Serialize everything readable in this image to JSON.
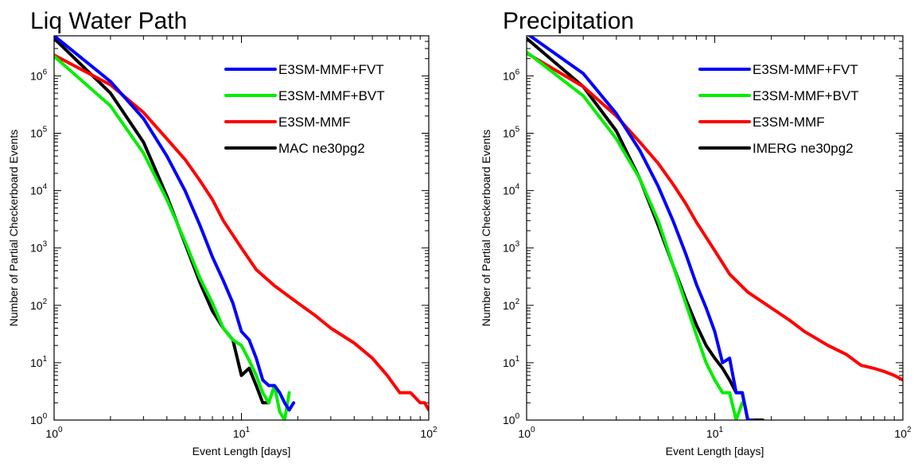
{
  "chart_data": [
    {
      "type": "line",
      "title": "Liq Water Path",
      "xlabel": "Event Length [days]",
      "ylabel": "Number of Partial Checkerboard Events",
      "xscale": "log",
      "yscale": "log",
      "xlim": [
        1,
        100
      ],
      "ylim": [
        1,
        5000000
      ],
      "x_ticks": [
        {
          "value": 1,
          "base": "10",
          "exp": "0"
        },
        {
          "value": 10,
          "base": "10",
          "exp": "1"
        },
        {
          "value": 100,
          "base": "10",
          "exp": "2"
        }
      ],
      "y_ticks": [
        {
          "value": 1,
          "base": "10",
          "exp": "0"
        },
        {
          "value": 10,
          "base": "10",
          "exp": "1"
        },
        {
          "value": 100,
          "base": "10",
          "exp": "2"
        },
        {
          "value": 1000,
          "base": "10",
          "exp": "3"
        },
        {
          "value": 10000,
          "base": "10",
          "exp": "4"
        },
        {
          "value": 100000,
          "base": "10",
          "exp": "5"
        },
        {
          "value": 1000000,
          "base": "10",
          "exp": "6"
        }
      ],
      "grid": false,
      "legend_position": "top-right",
      "series": [
        {
          "name": "E3SM-MMF+FVT",
          "color": "#0000ff",
          "x": [
            1,
            2,
            3,
            4,
            5,
            6,
            7,
            8,
            9,
            10,
            11,
            12,
            13,
            14,
            15,
            16,
            17,
            18,
            19
          ],
          "y": [
            5000000,
            800000,
            180000,
            40000,
            10000,
            2500,
            700,
            270,
            110,
            35,
            25,
            12,
            5,
            4,
            4,
            3,
            2,
            1.5,
            2
          ]
        },
        {
          "name": "E3SM-MMF+BVT",
          "color": "#00ee00",
          "x": [
            1,
            2,
            3,
            4,
            5,
            6,
            7,
            8,
            9,
            10,
            11,
            12,
            13,
            14,
            15,
            16,
            17,
            18
          ],
          "y": [
            2200000,
            300000,
            45000,
            7000,
            1300,
            300,
            110,
            40,
            25,
            20,
            11,
            6,
            3,
            2,
            4,
            1.4,
            1,
            3
          ]
        },
        {
          "name": "E3SM-MMF",
          "color": "#ff0000",
          "x": [
            1,
            2,
            3,
            4,
            5,
            6,
            7,
            8,
            10,
            12,
            15,
            20,
            25,
            30,
            40,
            50,
            60,
            70,
            80,
            90,
            95,
            100
          ],
          "y": [
            2300000,
            700000,
            230000,
            80000,
            35000,
            15000,
            7000,
            3000,
            1000,
            420,
            220,
            110,
            65,
            40,
            22,
            12,
            6,
            3,
            3,
            2,
            2,
            1.5
          ]
        },
        {
          "name": "MAC ne30pg2",
          "color": "#000000",
          "x": [
            1,
            2,
            3,
            4,
            5,
            6,
            7,
            8,
            9,
            10,
            11,
            12,
            13,
            14
          ],
          "y": [
            4500000,
            500000,
            70000,
            8000,
            1200,
            250,
            80,
            40,
            25,
            6,
            8,
            4,
            2,
            2
          ]
        }
      ]
    },
    {
      "type": "line",
      "title": "Precipitation",
      "xlabel": "Event Length [days]",
      "ylabel": "Number of Partial Checkerboard Events",
      "xscale": "log",
      "yscale": "log",
      "xlim": [
        1,
        100
      ],
      "ylim": [
        1,
        5000000
      ],
      "x_ticks": [
        {
          "value": 1,
          "base": "10",
          "exp": "0"
        },
        {
          "value": 10,
          "base": "10",
          "exp": "1"
        },
        {
          "value": 100,
          "base": "10",
          "exp": "2"
        }
      ],
      "y_ticks": [
        {
          "value": 1,
          "base": "10",
          "exp": "0"
        },
        {
          "value": 10,
          "base": "10",
          "exp": "1"
        },
        {
          "value": 100,
          "base": "10",
          "exp": "2"
        },
        {
          "value": 1000,
          "base": "10",
          "exp": "3"
        },
        {
          "value": 10000,
          "base": "10",
          "exp": "4"
        },
        {
          "value": 100000,
          "base": "10",
          "exp": "5"
        },
        {
          "value": 1000000,
          "base": "10",
          "exp": "6"
        }
      ],
      "grid": false,
      "legend_position": "top-right",
      "series": [
        {
          "name": "E3SM-MMF+FVT",
          "color": "#0000ff",
          "x": [
            1,
            2,
            3,
            4,
            5,
            6,
            7,
            8,
            9,
            10,
            11,
            12,
            13,
            14,
            15,
            16
          ],
          "y": [
            5500000,
            1100000,
            220000,
            50000,
            12000,
            3000,
            800,
            230,
            90,
            35,
            10,
            12,
            3,
            3,
            1,
            1
          ]
        },
        {
          "name": "E3SM-MMF+BVT",
          "color": "#00ee00",
          "x": [
            1,
            2,
            3,
            4,
            5,
            6,
            7,
            8,
            9,
            10,
            11,
            12,
            13,
            14
          ],
          "y": [
            2600000,
            450000,
            80000,
            16000,
            3000,
            500,
            110,
            30,
            10,
            5,
            3,
            3,
            1,
            2
          ]
        },
        {
          "name": "E3SM-MMF",
          "color": "#ff0000",
          "x": [
            1,
            2,
            3,
            4,
            5,
            6,
            7,
            8,
            10,
            12,
            15,
            20,
            25,
            30,
            40,
            50,
            60,
            70,
            80,
            90,
            100
          ],
          "y": [
            2500000,
            650000,
            200000,
            70000,
            30000,
            13000,
            6000,
            2800,
            900,
            350,
            170,
            90,
            55,
            35,
            20,
            14,
            9,
            8,
            7,
            6,
            5
          ]
        },
        {
          "name": "IMERG ne30pg2",
          "color": "#000000",
          "x": [
            1,
            2,
            3,
            4,
            5,
            6,
            7,
            8,
            9,
            10,
            11,
            12,
            13,
            14,
            15,
            16,
            17,
            18
          ],
          "y": [
            4500000,
            650000,
            110000,
            16000,
            2500,
            500,
            130,
            45,
            20,
            12,
            8,
            5,
            3,
            3,
            1,
            1,
            1,
            1
          ]
        }
      ]
    }
  ]
}
